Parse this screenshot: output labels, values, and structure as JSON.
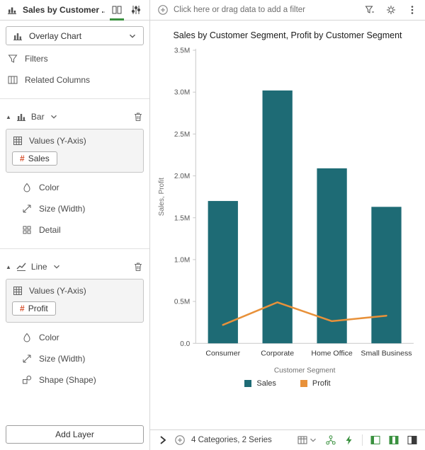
{
  "colors": {
    "accent_green": "#3a913f",
    "bar_teal": "#1e6b75",
    "line_orange": "#e8913a",
    "hash_red": "#d6502c"
  },
  "header": {
    "title": "Sales by Customer ...",
    "filter_hint": "Click here or drag data to add a filter"
  },
  "sidebar": {
    "chart_type": "Overlay Chart",
    "pill_prefix": "#",
    "items": [
      {
        "label": "Filters"
      },
      {
        "label": "Related Columns"
      }
    ],
    "sections": [
      {
        "title": "Bar",
        "values_label": "Values (Y-Axis)",
        "pill": "Sales",
        "rows": [
          "Color",
          "Size (Width)",
          "Detail"
        ]
      },
      {
        "title": "Line",
        "values_label": "Values (Y-Axis)",
        "pill": "Profit",
        "rows": [
          "Color",
          "Size (Width)",
          "Shape (Shape)"
        ]
      }
    ],
    "add_layer_label": "Add Layer"
  },
  "statusbar": {
    "summary": "4 Categories, 2 Series"
  },
  "chart_data": {
    "type": "bar",
    "subtype": "overlay bar+line",
    "title": "Sales by Customer Segment, Profit by Customer Segment",
    "categories": [
      "Consumer",
      "Corporate",
      "Home Office",
      "Small Business"
    ],
    "series": [
      {
        "name": "Sales",
        "mark": "bar",
        "color": "#1e6b75",
        "values": [
          1700000,
          3020000,
          2090000,
          1630000
        ]
      },
      {
        "name": "Profit",
        "mark": "line",
        "color": "#e8913a",
        "values": [
          220000,
          490000,
          265000,
          330000
        ]
      }
    ],
    "xlabel": "Customer Segment",
    "ylabel": "Sales, Profit",
    "ylim": [
      0,
      3500000
    ],
    "ytick_step": 500000,
    "ytick_labels": [
      "0.0",
      "0.5M",
      "1.0M",
      "1.5M",
      "2.0M",
      "2.5M",
      "3.0M",
      "3.5M"
    ],
    "grid": false,
    "legend_position": "bottom"
  }
}
